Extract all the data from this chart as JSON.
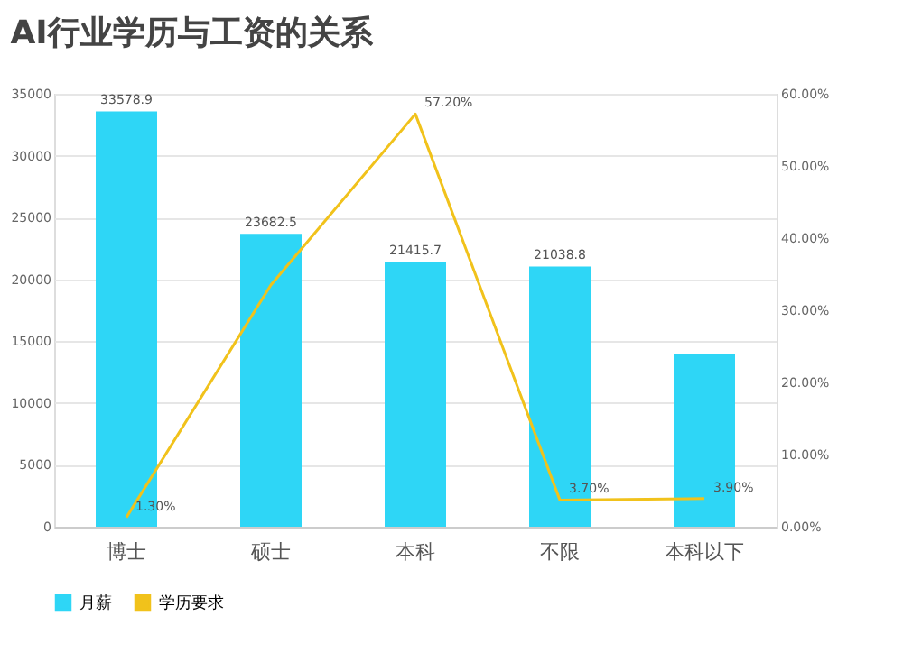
{
  "chart_data": {
    "type": "bar",
    "title": "AI行业学历与工资的关系",
    "categories": [
      "博士",
      "硕士",
      "本科",
      "不限",
      "本科以下"
    ],
    "series": [
      {
        "name": "月薪",
        "color": "#2ed6f6",
        "values": [
          33578.9,
          23682.5,
          21415.7,
          21038.8,
          14000
        ],
        "value_labels": [
          "33578.9",
          "23682.5",
          "21415.7",
          "21038.8",
          null
        ]
      },
      {
        "name": "学历要求",
        "type": "line",
        "axis": "y2",
        "color": "#f1c21b",
        "values": [
          1.3,
          33.5,
          57.2,
          3.7,
          3.9
        ],
        "value_labels": [
          "1.30%",
          null,
          "57.20%",
          "3.70%",
          "3.90%"
        ]
      }
    ],
    "ylim": [
      0,
      35000
    ],
    "yticks": [
      0,
      5000,
      10000,
      15000,
      20000,
      25000,
      30000,
      35000
    ],
    "y2lim": [
      0,
      60
    ],
    "y2ticks": [
      {
        "value": 0,
        "label": "0.00%"
      },
      {
        "value": 10,
        "label": "10.00%"
      },
      {
        "value": 20,
        "label": "20.00%"
      },
      {
        "value": 30,
        "label": "30.00%"
      },
      {
        "value": 40,
        "label": "40.00%"
      },
      {
        "value": 50,
        "label": "50.00%"
      },
      {
        "value": 60,
        "label": "60.00%"
      }
    ],
    "grid": "y",
    "legend": "bottom",
    "marker": "none"
  }
}
